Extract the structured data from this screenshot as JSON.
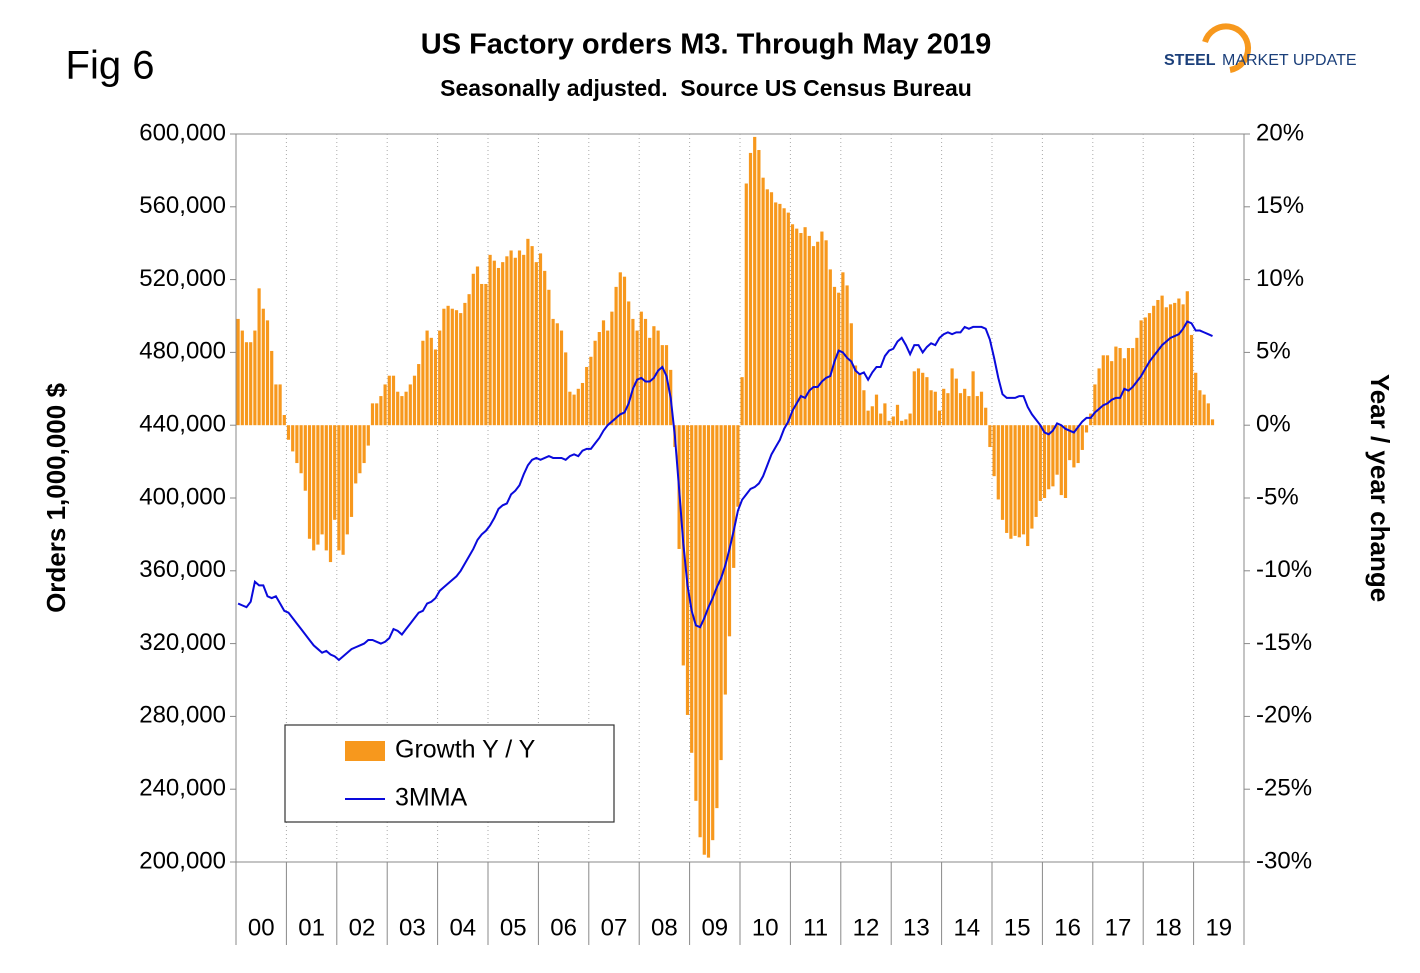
{
  "chart_data": {
    "type": "bar",
    "fig_label": "Fig 6",
    "title": "US Factory orders M3. Through May 2019",
    "subtitle": "Seasonally adjusted.  Source US Census Bureau",
    "logo": [
      "STEEL",
      "MARKET UPDATE"
    ],
    "y_label": "Orders 1,000,000 $",
    "y2_label": "Year / year change",
    "categories": [
      null,
      null,
      null,
      null,
      null,
      null,
      "00",
      null,
      null,
      null,
      null,
      null,
      null,
      null,
      null,
      null,
      null,
      null,
      "01",
      null,
      null,
      null,
      null,
      null,
      null,
      null,
      null,
      null,
      null,
      null,
      "02",
      null,
      null,
      null,
      null,
      null,
      null,
      null,
      null,
      null,
      null,
      null,
      "03",
      null,
      null,
      null,
      null,
      null,
      null,
      null,
      null,
      null,
      null,
      null,
      "04",
      null,
      null,
      null,
      null,
      null,
      null,
      null,
      null,
      null,
      null,
      null,
      "05",
      null,
      null,
      null,
      null,
      null,
      null,
      null,
      null,
      null,
      null,
      null,
      "06",
      null,
      null,
      null,
      null,
      null,
      null,
      null,
      null,
      null,
      null,
      null,
      "07",
      null,
      null,
      null,
      null,
      null,
      null,
      null,
      null,
      null,
      null,
      null,
      "08",
      null,
      null,
      null,
      null,
      null,
      null,
      null,
      null,
      null,
      null,
      null,
      "09",
      null,
      null,
      null,
      null,
      null,
      null,
      null,
      null,
      null,
      null,
      null,
      "10",
      null,
      null,
      null,
      null,
      null,
      null,
      null,
      null,
      null,
      null,
      null,
      "11",
      null,
      null,
      null,
      null,
      null,
      null,
      null,
      null,
      null,
      null,
      null,
      "12",
      null,
      null,
      null,
      null,
      null,
      null,
      null,
      null,
      null,
      null,
      null,
      "13",
      null,
      null,
      null,
      null,
      null,
      null,
      null,
      null,
      null,
      null,
      null,
      "14",
      null,
      null,
      null,
      null,
      null,
      null,
      null,
      null,
      null,
      null,
      null,
      "15",
      null,
      null,
      null,
      null,
      null,
      null,
      null,
      null,
      null,
      null,
      null,
      "16",
      null,
      null,
      null,
      null,
      null,
      null,
      null,
      null,
      null,
      null,
      null,
      "17",
      null,
      null,
      null,
      null,
      null,
      null,
      null,
      null,
      null,
      null,
      null,
      "18",
      null,
      null,
      null,
      null,
      null,
      null,
      null,
      null,
      null,
      null,
      null,
      "19",
      null,
      null,
      null,
      null,
      null
    ],
    "series": [
      {
        "name": "Growth Y / Y",
        "type": "bar",
        "axis": "y2",
        "color": "#f7981d",
        "values": [
          7.3,
          6.5,
          5.7,
          5.7,
          6.5,
          9.4,
          8.0,
          7.2,
          5.1,
          2.8,
          2.8,
          0.7,
          -1.0,
          -1.8,
          -2.6,
          -3.3,
          -4.5,
          -7.8,
          -8.6,
          -8.2,
          -7.5,
          -8.6,
          -9.4,
          -6.5,
          -8.6,
          -8.9,
          -7.5,
          -6.3,
          -4.0,
          -3.3,
          -2.6,
          -1.4,
          1.5,
          1.5,
          2.0,
          2.8,
          3.4,
          3.4,
          2.3,
          2.0,
          2.3,
          2.8,
          3.4,
          4.2,
          5.8,
          6.5,
          6.0,
          5.2,
          6.5,
          8.0,
          8.2,
          8.0,
          7.9,
          7.7,
          8.4,
          9.0,
          10.4,
          10.9,
          9.7,
          9.7,
          11.7,
          11.3,
          10.8,
          11.2,
          11.6,
          12.0,
          11.5,
          12.0,
          11.7,
          12.8,
          12.3,
          11.2,
          11.8,
          10.6,
          9.3,
          7.3,
          7.0,
          6.5,
          5.0,
          2.3,
          2.1,
          2.5,
          2.9,
          4.0,
          4.7,
          5.8,
          6.4,
          7.2,
          6.5,
          7.8,
          9.5,
          10.5,
          10.2,
          8.5,
          7.3,
          6.5,
          7.8,
          7.3,
          6.0,
          6.8,
          6.5,
          5.5,
          5.5,
          3.8,
          -1.5,
          -8.5,
          -16.5,
          -19.9,
          -22.5,
          -25.8,
          -28.3,
          -29.5,
          -29.7,
          -28.5,
          -26.3,
          -23.0,
          -18.5,
          -14.5,
          -9.8,
          -5.6,
          3.3,
          16.6,
          18.7,
          19.8,
          18.9,
          17.0,
          16.2,
          16.0,
          15.3,
          15.2,
          14.9,
          14.6,
          13.8,
          13.5,
          13.2,
          13.6,
          13.0,
          12.3,
          12.6,
          13.3,
          12.7,
          10.7,
          9.5,
          9.1,
          10.5,
          9.6,
          7.0,
          4.1,
          3.5,
          2.4,
          1.0,
          1.3,
          2.1,
          0.8,
          1.5,
          0.3,
          0.6,
          1.4,
          0.3,
          0.4,
          0.8,
          3.7,
          3.9,
          3.6,
          3.3,
          2.4,
          2.3,
          1.0,
          2.5,
          2.2,
          3.9,
          3.2,
          2.2,
          2.5,
          2.0,
          3.7,
          2.0,
          2.3,
          1.2,
          -1.5,
          -3.5,
          -5.1,
          -6.5,
          -7.4,
          -7.8,
          -7.6,
          -7.7,
          -7.5,
          -8.3,
          -7.1,
          -6.3,
          -5.2,
          -5.0,
          -4.4,
          -4.2,
          -3.4,
          -4.8,
          -5.0,
          -2.4,
          -2.9,
          -2.6,
          -1.7,
          -0.5,
          0.8,
          2.8,
          3.9,
          4.8,
          4.8,
          4.4,
          5.4,
          5.3,
          4.6,
          5.3,
          5.3,
          6.0,
          7.2,
          7.4,
          7.7,
          8.2,
          8.6,
          8.9,
          8.1,
          8.3,
          8.4,
          8.7,
          8.3,
          9.2,
          6.2,
          3.6,
          2.4,
          2.1,
          1.5,
          0.4,
          null,
          null,
          null,
          null,
          null,
          null,
          null
        ]
      },
      {
        "name": "3MMA",
        "type": "line",
        "color": "#0a0adc",
        "values": [
          342000,
          341000,
          340000,
          343000,
          354000,
          352000,
          352000,
          346000,
          345000,
          346000,
          342000,
          338000,
          337000,
          334000,
          331000,
          328000,
          325000,
          322000,
          319000,
          317000,
          315000,
          316000,
          314000,
          313000,
          311000,
          313000,
          315000,
          317000,
          318000,
          319000,
          320000,
          322000,
          322000,
          321000,
          320000,
          321000,
          323000,
          328000,
          327000,
          325000,
          328000,
          331000,
          334000,
          337000,
          338000,
          342000,
          343000,
          345000,
          349000,
          351000,
          353000,
          355000,
          357000,
          360000,
          364000,
          368000,
          372000,
          377000,
          380000,
          382000,
          385000,
          389000,
          394000,
          396000,
          397000,
          402000,
          404000,
          407000,
          413000,
          418000,
          421000,
          422000,
          421000,
          422000,
          423000,
          422000,
          422000,
          422000,
          421000,
          423000,
          424000,
          423000,
          426000,
          427000,
          427000,
          430000,
          433000,
          437000,
          440000,
          442000,
          444000,
          446000,
          447000,
          452000,
          460000,
          465000,
          466000,
          464000,
          464000,
          466000,
          470000,
          472000,
          467000,
          455000,
          434000,
          405000,
          375000,
          352000,
          338000,
          330000,
          329000,
          334000,
          340000,
          345000,
          351000,
          356000,
          363000,
          372000,
          382000,
          393000,
          399000,
          402000,
          405000,
          406000,
          408000,
          412000,
          418000,
          424000,
          428000,
          432000,
          438000,
          442000,
          448000,
          452000,
          456000,
          455000,
          459000,
          461000,
          461000,
          464000,
          466000,
          467000,
          475000,
          481000,
          480000,
          477000,
          475000,
          470000,
          468000,
          469000,
          465000,
          469000,
          472000,
          472000,
          478000,
          481000,
          482000,
          486000,
          488000,
          484000,
          479000,
          484000,
          484000,
          480000,
          483000,
          485000,
          484000,
          488000,
          490000,
          491000,
          490000,
          491000,
          491000,
          494000,
          493000,
          494000,
          494000,
          494000,
          493000,
          487000,
          477000,
          466000,
          457000,
          455000,
          455000,
          455000,
          456000,
          456000,
          450000,
          446000,
          443000,
          440000,
          436000,
          435000,
          437000,
          441000,
          440000,
          438000,
          437000,
          436000,
          439000,
          442000,
          444000,
          444000,
          447000,
          449000,
          451000,
          452000,
          454000,
          455000,
          455000,
          460000,
          459000,
          461000,
          464000,
          467000,
          471000,
          475000,
          478000,
          481000,
          484000,
          486000,
          488000,
          489000,
          490000,
          493000,
          497000,
          496000,
          492000,
          492000,
          491000,
          490000,
          489000,
          null,
          null,
          null,
          null,
          null,
          null,
          null
        ]
      }
    ],
    "ylim": [
      200000,
      600000
    ],
    "yticks": [
      {
        "value": 200000,
        "label": "200,000"
      },
      {
        "value": 240000,
        "label": "240,000"
      },
      {
        "value": 280000,
        "label": "280,000"
      },
      {
        "value": 320000,
        "label": "320,000"
      },
      {
        "value": 360000,
        "label": "360,000"
      },
      {
        "value": 400000,
        "label": "400,000"
      },
      {
        "value": 440000,
        "label": "440,000"
      },
      {
        "value": 480000,
        "label": "480,000"
      },
      {
        "value": 520000,
        "label": "520,000"
      },
      {
        "value": 560000,
        "label": "560,000"
      },
      {
        "value": 600000,
        "label": "600,000"
      }
    ],
    "y2lim": [
      -30,
      20
    ],
    "y2ticks": [
      {
        "value": -30,
        "label": "-30%"
      },
      {
        "value": -25,
        "label": "-25%"
      },
      {
        "value": -20,
        "label": "-20%"
      },
      {
        "value": -15,
        "label": "-15%"
      },
      {
        "value": -10,
        "label": "-10%"
      },
      {
        "value": -5,
        "label": "-5%"
      },
      {
        "value": 0,
        "label": "0%"
      },
      {
        "value": 5,
        "label": "5%"
      },
      {
        "value": 10,
        "label": "10%"
      },
      {
        "value": 15,
        "label": "15%"
      },
      {
        "value": 20,
        "label": "20%"
      }
    ],
    "legend": "lower-left"
  }
}
